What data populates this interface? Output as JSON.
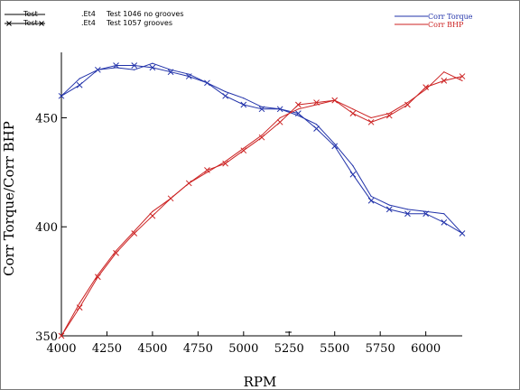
{
  "chart_data": {
    "type": "line",
    "title": "",
    "xlabel": "RPM",
    "ylabel": "Corr Torque/Corr BHP",
    "xlim": [
      4000,
      6200
    ],
    "ylim": [
      350,
      480
    ],
    "xticks": [
      "4000",
      "4250",
      "4500",
      "4750",
      "5000",
      "5250",
      "5500",
      "5750",
      "6000"
    ],
    "yticks": [
      "350",
      "400",
      "450"
    ],
    "legend_left": [
      {
        "name": "Test",
        "file": ".Et4",
        "desc": "Test 1046 no grooves",
        "marker": "none"
      },
      {
        "name": "Test",
        "file": ".Et4",
        "desc": "Test 1057 grooves",
        "marker": "x"
      }
    ],
    "legend_right": [
      {
        "name": "Corr Torque",
        "color": "#2233aa"
      },
      {
        "name": "Corr BHP",
        "color": "#cc2222"
      }
    ],
    "series": [
      {
        "name": "Corr Torque",
        "run": "Test 1046 no grooves",
        "color": "#2233aa",
        "marker": "none",
        "x": [
          4000,
          4100,
          4200,
          4300,
          4400,
          4500,
          4600,
          4700,
          4800,
          4900,
          5000,
          5100,
          5200,
          5300,
          5400,
          5500,
          5600,
          5700,
          5800,
          5900,
          6000,
          6100,
          6200
        ],
        "y": [
          460,
          468,
          472,
          473,
          472,
          475,
          472,
          470,
          466,
          462,
          459,
          455,
          454,
          451,
          447,
          438,
          428,
          414,
          410,
          408,
          407,
          406,
          397
        ]
      },
      {
        "name": "Corr Torque",
        "run": "Test 1057 grooves",
        "color": "#2233aa",
        "marker": "x",
        "x": [
          4000,
          4100,
          4200,
          4300,
          4400,
          4500,
          4600,
          4700,
          4800,
          4900,
          5000,
          5100,
          5200,
          5300,
          5400,
          5500,
          5600,
          5700,
          5800,
          5900,
          6000,
          6100,
          6200
        ],
        "y": [
          460,
          465,
          472,
          474,
          474,
          473,
          471,
          469,
          466,
          460,
          456,
          454,
          454,
          452,
          445,
          437,
          424,
          412,
          408,
          406,
          406,
          402,
          397
        ]
      },
      {
        "name": "Corr BHP",
        "run": "Test 1046 no grooves",
        "color": "#cc2222",
        "marker": "none",
        "x": [
          4000,
          4100,
          4200,
          4300,
          4400,
          4500,
          4600,
          4700,
          4800,
          4900,
          5000,
          5100,
          5200,
          5300,
          5400,
          5500,
          5600,
          5700,
          5800,
          5900,
          6000,
          6100,
          6200
        ],
        "y": [
          350,
          365,
          378,
          389,
          398,
          407,
          413,
          420,
          425,
          430,
          436,
          442,
          450,
          454,
          456,
          458,
          454,
          450,
          452,
          457,
          463,
          471,
          467
        ]
      },
      {
        "name": "Corr BHP",
        "run": "Test 1057 grooves",
        "color": "#cc2222",
        "marker": "x",
        "x": [
          4000,
          4100,
          4200,
          4300,
          4400,
          4500,
          4600,
          4700,
          4800,
          4900,
          5000,
          5100,
          5200,
          5300,
          5400,
          5500,
          5600,
          5700,
          5800,
          5900,
          6000,
          6100,
          6200
        ],
        "y": [
          350,
          363,
          377,
          388,
          397,
          405,
          413,
          420,
          426,
          429,
          435,
          441,
          448,
          456,
          457,
          458,
          452,
          448,
          451,
          456,
          464,
          467,
          469
        ]
      }
    ]
  }
}
